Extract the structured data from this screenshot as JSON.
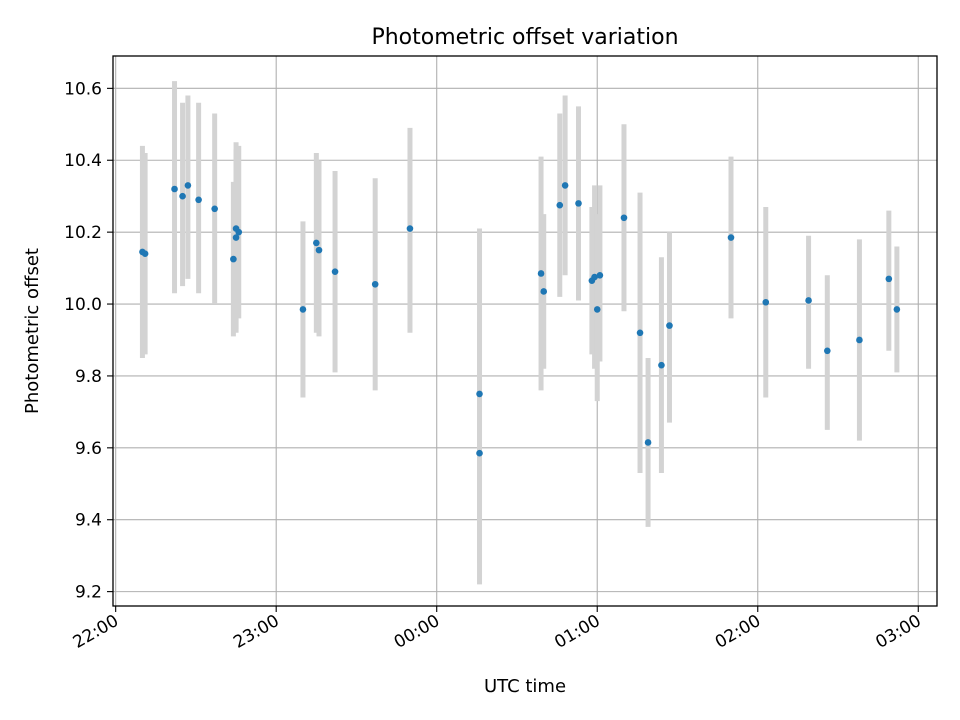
{
  "chart_data": {
    "type": "scatter",
    "title": "Photometric offset variation",
    "xlabel": "UTC time",
    "ylabel": "Photometric offset",
    "x_unit": "UTC clock time (22:00 on day 1 through 03:00 on day 2)",
    "xlim": [
      "21:59",
      "03:07"
    ],
    "ylim": [
      9.16,
      10.69
    ],
    "grid": true,
    "legend": "none",
    "marker_color": "#1f77b4",
    "errorbar_color": "#d3d3d3",
    "x_ticks": [
      {
        "value": "22:00",
        "label": "22:00"
      },
      {
        "value": "23:00",
        "label": "23:00"
      },
      {
        "value": "00:00",
        "label": "00:00"
      },
      {
        "value": "01:00",
        "label": "01:00"
      },
      {
        "value": "02:00",
        "label": "02:00"
      },
      {
        "value": "03:00",
        "label": "03:00"
      }
    ],
    "y_ticks": [
      {
        "value": 9.2,
        "label": "9.2"
      },
      {
        "value": 9.4,
        "label": "9.4"
      },
      {
        "value": 9.6,
        "label": "9.6"
      },
      {
        "value": 9.8,
        "label": "9.8"
      },
      {
        "value": 10.0,
        "label": "10.0"
      },
      {
        "value": 10.2,
        "label": "10.2"
      },
      {
        "value": 10.4,
        "label": "10.4"
      },
      {
        "value": 10.6,
        "label": "10.6"
      }
    ],
    "points": [
      {
        "x": "22:10",
        "y": 10.145,
        "low": 9.85,
        "high": 10.44
      },
      {
        "x": "22:11",
        "y": 10.14,
        "low": 9.86,
        "high": 10.42
      },
      {
        "x": "22:22",
        "y": 10.32,
        "low": 10.03,
        "high": 10.62
      },
      {
        "x": "22:25",
        "y": 10.3,
        "low": 10.05,
        "high": 10.56
      },
      {
        "x": "22:27",
        "y": 10.33,
        "low": 10.07,
        "high": 10.58
      },
      {
        "x": "22:31",
        "y": 10.29,
        "low": 10.03,
        "high": 10.56
      },
      {
        "x": "22:37",
        "y": 10.265,
        "low": 10.0,
        "high": 10.53
      },
      {
        "x": "22:44",
        "y": 10.125,
        "low": 9.91,
        "high": 10.34
      },
      {
        "x": "22:45",
        "y": 10.185,
        "low": 9.92,
        "high": 10.45
      },
      {
        "x": "22:45",
        "y": 10.21,
        "low": 9.93,
        "high": 10.43
      },
      {
        "x": "22:46",
        "y": 10.2,
        "low": 9.96,
        "high": 10.44
      },
      {
        "x": "23:10",
        "y": 9.985,
        "low": 9.74,
        "high": 10.23
      },
      {
        "x": "23:15",
        "y": 10.17,
        "low": 9.92,
        "high": 10.42
      },
      {
        "x": "23:16",
        "y": 10.15,
        "low": 9.91,
        "high": 10.4
      },
      {
        "x": "23:22",
        "y": 10.09,
        "low": 9.81,
        "high": 10.37
      },
      {
        "x": "23:37",
        "y": 10.055,
        "low": 9.76,
        "high": 10.35
      },
      {
        "x": "23:50",
        "y": 10.21,
        "low": 9.92,
        "high": 10.49
      },
      {
        "x": "00:16",
        "y": 9.75,
        "low": 9.28,
        "high": 10.21
      },
      {
        "x": "00:16",
        "y": 9.585,
        "low": 9.22,
        "high": 9.95
      },
      {
        "x": "00:39",
        "y": 10.085,
        "low": 9.76,
        "high": 10.41
      },
      {
        "x": "00:40",
        "y": 10.035,
        "low": 9.82,
        "high": 10.25
      },
      {
        "x": "00:46",
        "y": 10.275,
        "low": 10.02,
        "high": 10.53
      },
      {
        "x": "00:48",
        "y": 10.33,
        "low": 10.08,
        "high": 10.58
      },
      {
        "x": "00:53",
        "y": 10.28,
        "low": 10.01,
        "high": 10.55
      },
      {
        "x": "00:58",
        "y": 10.065,
        "low": 9.86,
        "high": 10.27
      },
      {
        "x": "00:59",
        "y": 10.075,
        "low": 9.82,
        "high": 10.33
      },
      {
        "x": "01:00",
        "y": 9.985,
        "low": 9.73,
        "high": 10.25
      },
      {
        "x": "01:01",
        "y": 10.08,
        "low": 9.84,
        "high": 10.33
      },
      {
        "x": "01:10",
        "y": 10.24,
        "low": 9.98,
        "high": 10.5
      },
      {
        "x": "01:16",
        "y": 9.92,
        "low": 9.53,
        "high": 10.31
      },
      {
        "x": "01:19",
        "y": 9.615,
        "low": 9.38,
        "high": 9.85
      },
      {
        "x": "01:24",
        "y": 9.83,
        "low": 9.53,
        "high": 10.13
      },
      {
        "x": "01:27",
        "y": 9.94,
        "low": 9.67,
        "high": 10.2
      },
      {
        "x": "01:50",
        "y": 10.185,
        "low": 9.96,
        "high": 10.41
      },
      {
        "x": "02:03",
        "y": 10.005,
        "low": 9.74,
        "high": 10.27
      },
      {
        "x": "02:19",
        "y": 10.01,
        "low": 9.82,
        "high": 10.19
      },
      {
        "x": "02:26",
        "y": 9.87,
        "low": 9.65,
        "high": 10.08
      },
      {
        "x": "02:38",
        "y": 9.9,
        "low": 9.62,
        "high": 10.18
      },
      {
        "x": "02:49",
        "y": 10.07,
        "low": 9.87,
        "high": 10.26
      },
      {
        "x": "02:52",
        "y": 9.985,
        "low": 9.81,
        "high": 10.16
      }
    ]
  }
}
